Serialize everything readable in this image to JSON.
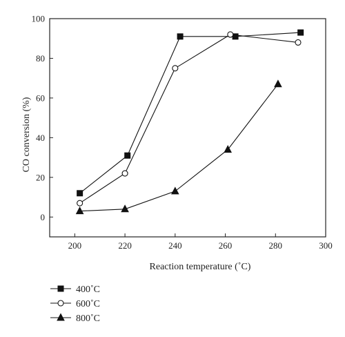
{
  "chart_data": {
    "type": "line",
    "xlabel": "Reaction temperature (˚C)",
    "ylabel": "CO conversion (%)",
    "xlim": [
      190,
      300
    ],
    "ylim": [
      -10,
      100
    ],
    "xticks": [
      "200",
      "220",
      "240",
      "260",
      "280",
      "300"
    ],
    "yticks": [
      "0",
      "20",
      "40",
      "60",
      "80",
      "100"
    ],
    "grid": false,
    "legend_position": "bottom-left, below plot",
    "series": [
      {
        "name": "400˚C",
        "marker": "square-filled",
        "x": [
          202,
          221,
          242,
          264,
          290
        ],
        "y": [
          12,
          31,
          91,
          91,
          93
        ]
      },
      {
        "name": "600˚C",
        "marker": "circle-open",
        "x": [
          202,
          220,
          240,
          262,
          289
        ],
        "y": [
          7,
          22,
          75,
          92,
          88
        ]
      },
      {
        "name": "800˚C",
        "marker": "triangle-filled",
        "x": [
          202,
          220,
          240,
          261,
          281
        ],
        "y": [
          3,
          4,
          13,
          34,
          67
        ]
      }
    ]
  }
}
